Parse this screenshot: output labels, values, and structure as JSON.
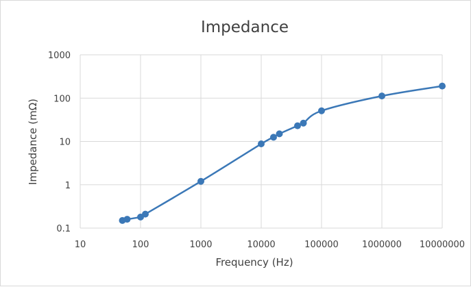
{
  "chart_data": {
    "type": "line",
    "title": "Impedance",
    "xlabel": "Frequency (Hz)",
    "ylabel": "Impedance (mΩ)",
    "x_scale": "log",
    "y_scale": "log",
    "xlim": [
      10,
      10000000
    ],
    "ylim": [
      0.1,
      1000
    ],
    "x_ticks": [
      "10",
      "100",
      "1000",
      "10000",
      "100000",
      "1000000",
      "10000000"
    ],
    "y_ticks": [
      "0.1",
      "1",
      "10",
      "100",
      "1000"
    ],
    "grid": true,
    "legend": "none",
    "series": [
      {
        "color": "#3b78b7",
        "markers": true,
        "smooth": true,
        "points": [
          {
            "x": 50,
            "y": 0.15
          },
          {
            "x": 60,
            "y": 0.16
          },
          {
            "x": 100,
            "y": 0.18
          },
          {
            "x": 120,
            "y": 0.21
          },
          {
            "x": 1000,
            "y": 1.2
          },
          {
            "x": 10000,
            "y": 8.8
          },
          {
            "x": 16000,
            "y": 12.5
          },
          {
            "x": 20000,
            "y": 15
          },
          {
            "x": 40000,
            "y": 23
          },
          {
            "x": 50000,
            "y": 26.5
          },
          {
            "x": 100000,
            "y": 51
          },
          {
            "x": 1000000,
            "y": 112
          },
          {
            "x": 10000000,
            "y": 190
          }
        ]
      }
    ]
  }
}
